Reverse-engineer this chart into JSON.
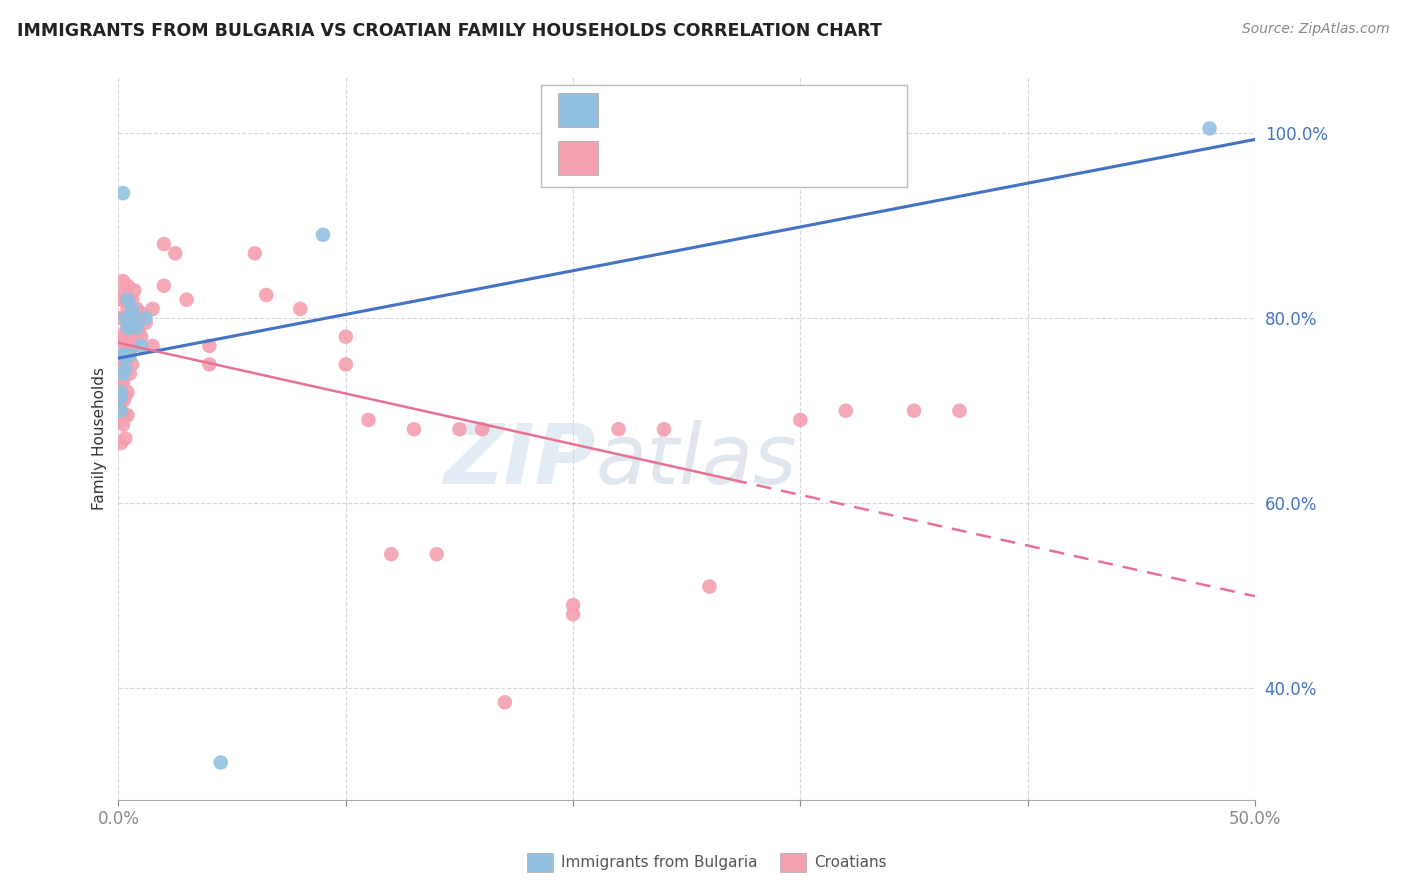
{
  "title": "IMMIGRANTS FROM BULGARIA VS CROATIAN FAMILY HOUSEHOLDS CORRELATION CHART",
  "source_text": "Source: ZipAtlas.com",
  "ylabel": "Family Households",
  "xlim": [
    0.0,
    0.5
  ],
  "ylim": [
    0.28,
    1.06
  ],
  "y_ticks": [
    0.4,
    0.6,
    0.8,
    1.0
  ],
  "y_tick_labels": [
    "40.0%",
    "60.0%",
    "80.0%",
    "100.0%"
  ],
  "blue_color": "#92c0e0",
  "pink_color": "#f4a0b0",
  "line_blue": "#4472c4",
  "line_pink": "#e87090",
  "watermark_zip": "ZIP",
  "watermark_atlas": "atlas",
  "bulgaria_points": [
    [
      0.002,
      0.935
    ],
    [
      0.001,
      0.72
    ],
    [
      0.001,
      0.715
    ],
    [
      0.001,
      0.7
    ],
    [
      0.002,
      0.76
    ],
    [
      0.002,
      0.74
    ],
    [
      0.003,
      0.8
    ],
    [
      0.003,
      0.76
    ],
    [
      0.003,
      0.745
    ],
    [
      0.004,
      0.82
    ],
    [
      0.004,
      0.79
    ],
    [
      0.005,
      0.79
    ],
    [
      0.005,
      0.76
    ],
    [
      0.006,
      0.81
    ],
    [
      0.007,
      0.8
    ],
    [
      0.008,
      0.79
    ],
    [
      0.01,
      0.77
    ],
    [
      0.012,
      0.8
    ],
    [
      0.045,
      0.32
    ],
    [
      0.09,
      0.89
    ],
    [
      0.48,
      1.005
    ]
  ],
  "croatian_points": [
    [
      0.001,
      0.82
    ],
    [
      0.001,
      0.8
    ],
    [
      0.001,
      0.775
    ],
    [
      0.001,
      0.755
    ],
    [
      0.001,
      0.73
    ],
    [
      0.001,
      0.71
    ],
    [
      0.001,
      0.69
    ],
    [
      0.001,
      0.665
    ],
    [
      0.002,
      0.84
    ],
    [
      0.002,
      0.82
    ],
    [
      0.002,
      0.8
    ],
    [
      0.002,
      0.78
    ],
    [
      0.002,
      0.755
    ],
    [
      0.002,
      0.73
    ],
    [
      0.002,
      0.71
    ],
    [
      0.002,
      0.685
    ],
    [
      0.003,
      0.83
    ],
    [
      0.003,
      0.8
    ],
    [
      0.003,
      0.785
    ],
    [
      0.003,
      0.765
    ],
    [
      0.003,
      0.74
    ],
    [
      0.003,
      0.715
    ],
    [
      0.003,
      0.695
    ],
    [
      0.003,
      0.67
    ],
    [
      0.004,
      0.835
    ],
    [
      0.004,
      0.81
    ],
    [
      0.004,
      0.785
    ],
    [
      0.004,
      0.755
    ],
    [
      0.004,
      0.72
    ],
    [
      0.004,
      0.695
    ],
    [
      0.005,
      0.815
    ],
    [
      0.005,
      0.79
    ],
    [
      0.005,
      0.765
    ],
    [
      0.005,
      0.74
    ],
    [
      0.006,
      0.82
    ],
    [
      0.006,
      0.795
    ],
    [
      0.006,
      0.77
    ],
    [
      0.006,
      0.75
    ],
    [
      0.007,
      0.83
    ],
    [
      0.007,
      0.8
    ],
    [
      0.007,
      0.775
    ],
    [
      0.008,
      0.81
    ],
    [
      0.008,
      0.78
    ],
    [
      0.009,
      0.785
    ],
    [
      0.01,
      0.805
    ],
    [
      0.01,
      0.78
    ],
    [
      0.012,
      0.795
    ],
    [
      0.015,
      0.81
    ],
    [
      0.015,
      0.77
    ],
    [
      0.02,
      0.88
    ],
    [
      0.02,
      0.835
    ],
    [
      0.025,
      0.87
    ],
    [
      0.03,
      0.82
    ],
    [
      0.04,
      0.77
    ],
    [
      0.04,
      0.75
    ],
    [
      0.06,
      0.87
    ],
    [
      0.065,
      0.825
    ],
    [
      0.08,
      0.81
    ],
    [
      0.1,
      0.78
    ],
    [
      0.1,
      0.75
    ],
    [
      0.11,
      0.69
    ],
    [
      0.12,
      0.545
    ],
    [
      0.13,
      0.68
    ],
    [
      0.14,
      0.545
    ],
    [
      0.15,
      0.68
    ],
    [
      0.16,
      0.68
    ],
    [
      0.17,
      0.385
    ],
    [
      0.2,
      0.49
    ],
    [
      0.2,
      0.48
    ],
    [
      0.22,
      0.68
    ],
    [
      0.24,
      0.68
    ],
    [
      0.26,
      0.51
    ],
    [
      0.3,
      0.69
    ],
    [
      0.32,
      0.7
    ],
    [
      0.35,
      0.7
    ],
    [
      0.37,
      0.7
    ]
  ]
}
